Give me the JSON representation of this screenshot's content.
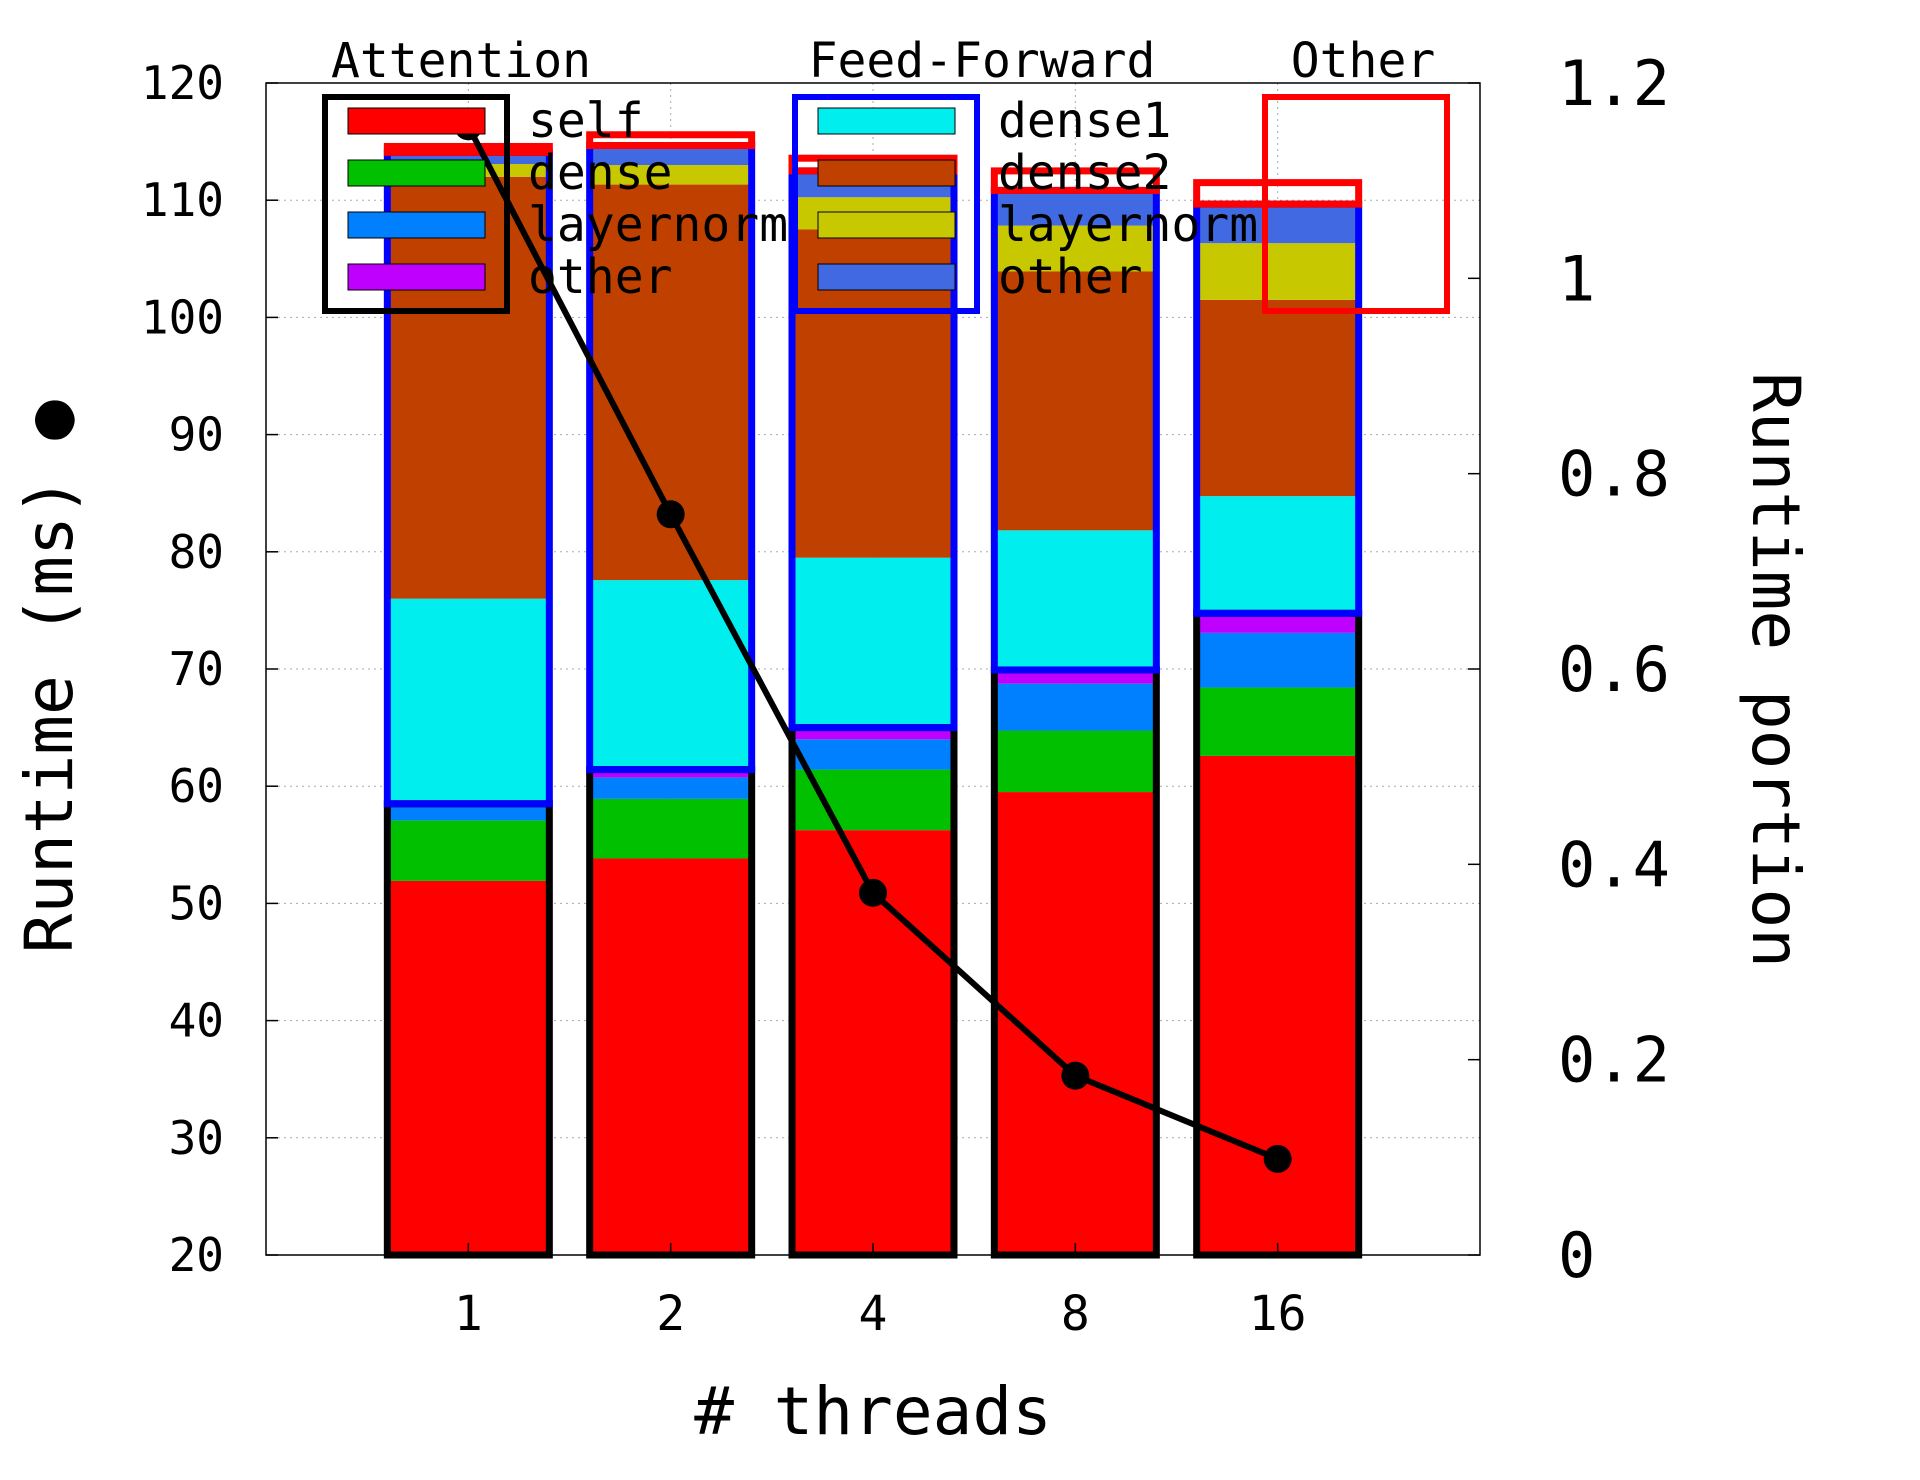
{
  "chart_data": {
    "type": "stacked-bar-with-line",
    "xlabel": "# threads",
    "ylabel_left": "Runtime (ms)",
    "ylabel_left_marker": "●",
    "ylabel_right": "Runtime portion",
    "ylim_left": [
      20,
      120
    ],
    "ylim_right": [
      0,
      1.2
    ],
    "yticks_left": [
      "20",
      "30",
      "40",
      "50",
      "60",
      "70",
      "80",
      "90",
      "100",
      "110",
      "120"
    ],
    "yticks_right": [
      "0",
      "0.2",
      "0.4",
      "0.6",
      "0.8",
      "1",
      "1.2"
    ],
    "grid": true,
    "categories": [
      "1",
      "2",
      "4",
      "8",
      "16"
    ],
    "groups": [
      {
        "name": "Attention",
        "outline_color": "#000000",
        "series": [
          {
            "name": "self",
            "color": "#ff0000",
            "values": [
              0.383,
              0.406,
              0.435,
              0.474,
              0.511
            ]
          },
          {
            "name": "dense",
            "color": "#00c000",
            "values": [
              0.062,
              0.061,
              0.062,
              0.063,
              0.07
            ]
          },
          {
            "name": "layernorm",
            "color": "#0080ff",
            "values": [
              0.014,
              0.022,
              0.031,
              0.048,
              0.056
            ]
          },
          {
            "name": "other",
            "color": "#c000ff",
            "values": [
              0.003,
              0.008,
              0.012,
              0.014,
              0.02
            ]
          }
        ]
      },
      {
        "name": "Feed-Forward",
        "outline_color": "#0000ff",
        "series": [
          {
            "name": "dense1",
            "color": "#00eeee",
            "values": [
              0.21,
              0.194,
              0.174,
              0.143,
              0.12
            ]
          },
          {
            "name": "dense2",
            "color": "#c04000",
            "values": [
              0.432,
              0.405,
              0.336,
              0.265,
              0.201
            ]
          },
          {
            "name": "layernorm",
            "color": "#c8c800",
            "values": [
              0.013,
              0.02,
              0.033,
              0.047,
              0.058
            ]
          },
          {
            "name": "other",
            "color": "#4169e1",
            "values": [
              0.012,
              0.02,
              0.027,
              0.036,
              0.04
            ]
          }
        ]
      },
      {
        "name": "Other",
        "outline_color": "#ff0000",
        "series": [],
        "totals": [
          0.006,
          0.011,
          0.013,
          0.02,
          0.022
        ]
      }
    ],
    "line_series": {
      "axis": "left",
      "x": [
        "1",
        "2",
        "4",
        "8",
        "16"
      ],
      "values": [
        116.3,
        83.2,
        50.9,
        35.3,
        28.2
      ]
    }
  }
}
